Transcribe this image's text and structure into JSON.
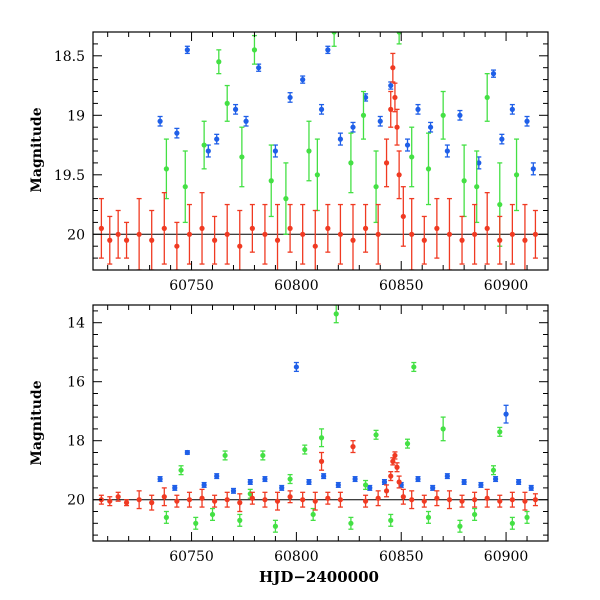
{
  "figure": {
    "xlabel": "HJD−2400000",
    "colors": {
      "blue": "#1f5fe8",
      "green": "#44e044",
      "red": "#f03a22",
      "axis": "#000000"
    }
  },
  "chart_data": [
    {
      "type": "scatter",
      "panel": "top",
      "title": "",
      "xlabel": "",
      "ylabel": "Magnitude",
      "xlim": [
        60703,
        60920
      ],
      "ylim": [
        20.3,
        18.3
      ],
      "y_inverted": true,
      "xticks": [
        60750,
        60800,
        60850,
        60900
      ],
      "yticks": [
        18.5,
        19,
        19.5,
        20
      ],
      "xticklabels": [
        "60750",
        "60800",
        "60850",
        "60900"
      ],
      "yticklabels": [
        "18.5",
        "19",
        "19.5",
        "20"
      ],
      "reference_line": 20.0,
      "grid": false,
      "legend": "none",
      "series": [
        {
          "color": "blue",
          "x": [
            60735,
            60743,
            60748,
            60758,
            60762,
            60771,
            60776,
            60782,
            60790,
            60797,
            60803,
            60812,
            60815,
            60821,
            60827,
            60833,
            60840,
            60845,
            60853,
            60858,
            60864,
            60872,
            60878,
            60887,
            60894,
            60898,
            60903,
            60910,
            60913
          ],
          "y": [
            19.05,
            19.15,
            18.45,
            19.3,
            19.2,
            18.95,
            19.05,
            18.6,
            19.3,
            18.85,
            18.7,
            18.95,
            18.45,
            19.2,
            19.1,
            18.85,
            19.05,
            18.75,
            19.25,
            18.95,
            19.1,
            19.3,
            19.0,
            19.4,
            18.65,
            19.2,
            18.95,
            19.05,
            19.45
          ],
          "errors": [
            0.04,
            0.04,
            0.03,
            0.05,
            0.04,
            0.04,
            0.04,
            0.03,
            0.05,
            0.04,
            0.03,
            0.04,
            0.03,
            0.05,
            0.04,
            0.03,
            0.04,
            0.03,
            0.05,
            0.04,
            0.04,
            0.05,
            0.04,
            0.05,
            0.03,
            0.04,
            0.04,
            0.04,
            0.05
          ]
        },
        {
          "color": "green",
          "x": [
            60738,
            60747,
            60756,
            60763,
            60767,
            60774,
            60780,
            60788,
            60795,
            60806,
            60810,
            60818,
            60826,
            60832,
            60838,
            60849,
            60855,
            60863,
            60870,
            60880,
            60886,
            60891,
            60897,
            60905
          ],
          "y": [
            19.45,
            19.6,
            19.25,
            18.55,
            18.9,
            19.35,
            18.45,
            19.55,
            19.7,
            19.3,
            19.5,
            18.3,
            19.4,
            19.0,
            19.6,
            18.3,
            19.35,
            19.45,
            19.0,
            19.55,
            19.6,
            18.85,
            19.75,
            19.5
          ],
          "errors": [
            0.25,
            0.3,
            0.2,
            0.1,
            0.15,
            0.25,
            0.12,
            0.3,
            0.3,
            0.25,
            0.3,
            0.12,
            0.25,
            0.2,
            0.3,
            0.1,
            0.25,
            0.3,
            0.2,
            0.3,
            0.3,
            0.2,
            0.35,
            0.3
          ]
        },
        {
          "color": "red",
          "x": [
            60707,
            60711,
            60715,
            60719,
            60725,
            60731,
            60737,
            60743,
            60749,
            60755,
            60761,
            60767,
            60773,
            60779,
            60785,
            60791,
            60797,
            60803,
            60809,
            60815,
            60821,
            60827,
            60833,
            60839,
            60843,
            60845,
            60846,
            60847,
            60848,
            60849,
            60851,
            60855,
            60861,
            60867,
            60873,
            60879,
            60885,
            60891,
            60897,
            60903,
            60909,
            60914
          ],
          "y": [
            19.95,
            20.05,
            20.0,
            20.05,
            20.0,
            20.05,
            19.95,
            20.1,
            20.0,
            19.95,
            20.05,
            20.0,
            20.1,
            19.95,
            20.0,
            20.05,
            19.95,
            20.0,
            20.1,
            19.95,
            20.0,
            20.05,
            19.95,
            20.0,
            19.4,
            18.95,
            18.6,
            18.85,
            19.1,
            19.5,
            19.85,
            20.0,
            20.05,
            19.95,
            20.0,
            20.05,
            20.0,
            19.95,
            20.05,
            20.0,
            20.05,
            20.0
          ],
          "errors": [
            0.25,
            0.2,
            0.2,
            0.15,
            0.3,
            0.25,
            0.3,
            0.2,
            0.25,
            0.3,
            0.2,
            0.25,
            0.3,
            0.2,
            0.25,
            0.3,
            0.2,
            0.25,
            0.3,
            0.2,
            0.25,
            0.3,
            0.2,
            0.25,
            0.2,
            0.15,
            0.12,
            0.12,
            0.15,
            0.2,
            0.25,
            0.3,
            0.2,
            0.25,
            0.3,
            0.2,
            0.25,
            0.3,
            0.2,
            0.25,
            0.3,
            0.2
          ]
        }
      ]
    },
    {
      "type": "scatter",
      "panel": "bottom",
      "title": "",
      "xlabel": "HJD−2400000",
      "ylabel": "Magnitude",
      "xlim": [
        60703,
        60920
      ],
      "ylim": [
        21.4,
        13.4
      ],
      "y_inverted": true,
      "xticks": [
        60750,
        60800,
        60850,
        60900
      ],
      "yticks": [
        14,
        16,
        18,
        20
      ],
      "xticklabels": [
        "60750",
        "60800",
        "60850",
        "60900"
      ],
      "yticklabels": [
        "14",
        "16",
        "18",
        "20"
      ],
      "reference_line": 20.0,
      "grid": false,
      "legend": "none",
      "series": [
        {
          "color": "blue",
          "x": [
            60735,
            60742,
            60748,
            60756,
            60762,
            60770,
            60778,
            60785,
            60793,
            60800,
            60806,
            60813,
            60820,
            60828,
            60835,
            60842,
            60850,
            60858,
            60865,
            60872,
            60880,
            60888,
            60895,
            60900,
            60906,
            60912
          ],
          "y": [
            19.3,
            19.6,
            18.4,
            19.5,
            19.2,
            19.7,
            19.4,
            19.3,
            19.6,
            15.5,
            19.4,
            19.2,
            19.5,
            19.3,
            19.6,
            19.4,
            19.5,
            19.3,
            19.6,
            19.2,
            19.4,
            19.5,
            19.3,
            17.1,
            19.4,
            19.6
          ],
          "errors": [
            0.08,
            0.08,
            0.06,
            0.08,
            0.08,
            0.08,
            0.08,
            0.08,
            0.08,
            0.15,
            0.08,
            0.08,
            0.08,
            0.08,
            0.08,
            0.08,
            0.08,
            0.08,
            0.08,
            0.08,
            0.08,
            0.08,
            0.08,
            0.3,
            0.08,
            0.08
          ]
        },
        {
          "color": "green",
          "x": [
            60738,
            60745,
            60752,
            60760,
            60766,
            60773,
            60778,
            60784,
            60790,
            60797,
            60804,
            60808,
            60812,
            60819,
            60826,
            60833,
            60838,
            60845,
            60853,
            60856,
            60863,
            60870,
            60878,
            60885,
            60894,
            60897,
            60903,
            60910
          ],
          "y": [
            20.6,
            19.0,
            20.8,
            20.5,
            18.5,
            20.7,
            19.8,
            18.5,
            20.9,
            19.3,
            18.3,
            20.5,
            17.9,
            13.7,
            20.8,
            19.5,
            17.8,
            20.7,
            18.1,
            15.5,
            20.6,
            17.6,
            20.9,
            20.5,
            19.0,
            17.7,
            20.8,
            20.6
          ],
          "errors": [
            0.2,
            0.15,
            0.2,
            0.2,
            0.15,
            0.2,
            0.15,
            0.15,
            0.2,
            0.15,
            0.15,
            0.2,
            0.3,
            0.3,
            0.2,
            0.15,
            0.15,
            0.2,
            0.15,
            0.15,
            0.2,
            0.4,
            0.2,
            0.2,
            0.15,
            0.15,
            0.2,
            0.2
          ]
        },
        {
          "color": "red",
          "x": [
            60707,
            60711,
            60715,
            60719,
            60725,
            60731,
            60737,
            60743,
            60749,
            60755,
            60761,
            60767,
            60773,
            60779,
            60785,
            60791,
            60797,
            60803,
            60809,
            60812,
            60815,
            60821,
            60827,
            60833,
            60839,
            60843,
            60845,
            60846,
            60847,
            60848,
            60849,
            60851,
            60855,
            60861,
            60867,
            60873,
            60879,
            60885,
            60891,
            60897,
            60903,
            60909,
            60914
          ],
          "y": [
            20.0,
            20.05,
            19.9,
            20.1,
            20.0,
            20.1,
            19.9,
            20.05,
            20.0,
            19.95,
            20.05,
            20.0,
            20.1,
            19.95,
            20.0,
            20.05,
            19.9,
            20.0,
            20.05,
            18.7,
            19.95,
            20.0,
            18.2,
            20.05,
            19.95,
            19.7,
            19.2,
            18.7,
            18.5,
            18.9,
            19.4,
            19.9,
            20.0,
            20.05,
            19.95,
            20.0,
            20.05,
            20.0,
            19.95,
            20.05,
            20.0,
            20.05,
            20.0
          ],
          "errors": [
            0.15,
            0.15,
            0.15,
            0.1,
            0.3,
            0.25,
            0.3,
            0.2,
            0.25,
            0.3,
            0.2,
            0.25,
            0.3,
            0.2,
            0.25,
            0.3,
            0.2,
            0.25,
            0.3,
            0.3,
            0.2,
            0.25,
            0.2,
            0.2,
            0.25,
            0.2,
            0.15,
            0.12,
            0.12,
            0.15,
            0.2,
            0.25,
            0.3,
            0.2,
            0.25,
            0.3,
            0.2,
            0.25,
            0.3,
            0.2,
            0.25,
            0.3,
            0.2
          ]
        }
      ]
    }
  ]
}
